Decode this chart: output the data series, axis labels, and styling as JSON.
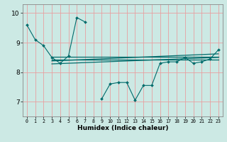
{
  "xlabel": "Humidex (Indice chaleur)",
  "xlim": [
    -0.5,
    23.5
  ],
  "ylim": [
    6.5,
    10.3
  ],
  "yticks": [
    7,
    8,
    9,
    10
  ],
  "xticks": [
    0,
    1,
    2,
    3,
    4,
    5,
    6,
    7,
    8,
    9,
    10,
    11,
    12,
    13,
    14,
    15,
    16,
    17,
    18,
    19,
    20,
    21,
    22,
    23
  ],
  "bg_color": "#cce9e4",
  "grid_color": "#e8a0a0",
  "line_color": "#006b6b",
  "main_line_x": [
    0,
    1,
    2,
    3,
    4,
    5,
    6,
    7,
    8,
    9,
    10,
    11,
    12,
    13,
    14,
    15,
    16,
    17,
    18,
    19,
    20,
    21,
    22,
    23
  ],
  "main_line_y": [
    9.6,
    9.1,
    8.9,
    8.5,
    8.3,
    8.55,
    9.85,
    9.7,
    null,
    7.1,
    7.6,
    7.65,
    7.65,
    7.05,
    7.55,
    7.55,
    8.3,
    8.35,
    8.35,
    8.5,
    8.3,
    8.35,
    8.45,
    8.75
  ],
  "trend_lines": [
    {
      "x": [
        3,
        23
      ],
      "y": [
        8.52,
        8.52
      ]
    },
    {
      "x": [
        3,
        23
      ],
      "y": [
        8.38,
        8.62
      ]
    },
    {
      "x": [
        3,
        23
      ],
      "y": [
        8.42,
        8.42
      ]
    },
    {
      "x": [
        3,
        23
      ],
      "y": [
        8.28,
        8.5
      ]
    }
  ]
}
